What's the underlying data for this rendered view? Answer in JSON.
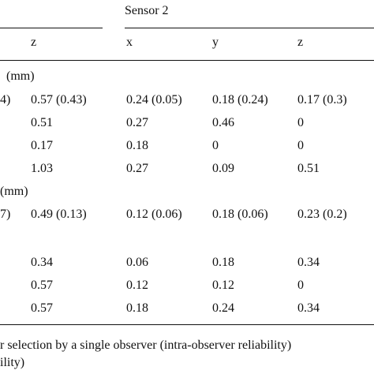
{
  "header": {
    "group_label": "Sensor 2",
    "col_z1": "z",
    "col_x": "x",
    "col_y": "y",
    "col_z2": "z"
  },
  "sections": [
    {
      "label": "(mm)",
      "rows": [
        {
          "lead": "4)",
          "cells": [
            "0.57 (0.43)",
            "0.24 (0.05)",
            "0.18 (0.24)",
            "0.17 (0.3)"
          ]
        },
        {
          "lead": "",
          "cells": [
            "0.51",
            "0.27",
            "0.46",
            "0"
          ]
        },
        {
          "lead": "",
          "cells": [
            "0.17",
            "0.18",
            "0",
            "0"
          ]
        },
        {
          "lead": "",
          "cells": [
            "1.03",
            "0.27",
            "0.09",
            "0.51"
          ]
        }
      ]
    },
    {
      "label": "(mm)",
      "rows": [
        {
          "lead": "7)",
          "cells": [
            "0.49 (0.13)",
            "0.12 (0.06)",
            "0.18 (0.06)",
            "0.23 (0.2)"
          ]
        },
        {
          "lead": "",
          "cells": [
            "0.34",
            "0.06",
            "0.18",
            "0.34"
          ]
        },
        {
          "lead": "",
          "cells": [
            "0.57",
            "0.12",
            "0.12",
            "0"
          ]
        },
        {
          "lead": "",
          "cells": [
            "0.57",
            "0.18",
            "0.24",
            "0.34"
          ]
        }
      ]
    }
  ],
  "footnote": {
    "line1": "r selection by a single observer (intra-observer reliability)",
    "line2": "ility)"
  }
}
